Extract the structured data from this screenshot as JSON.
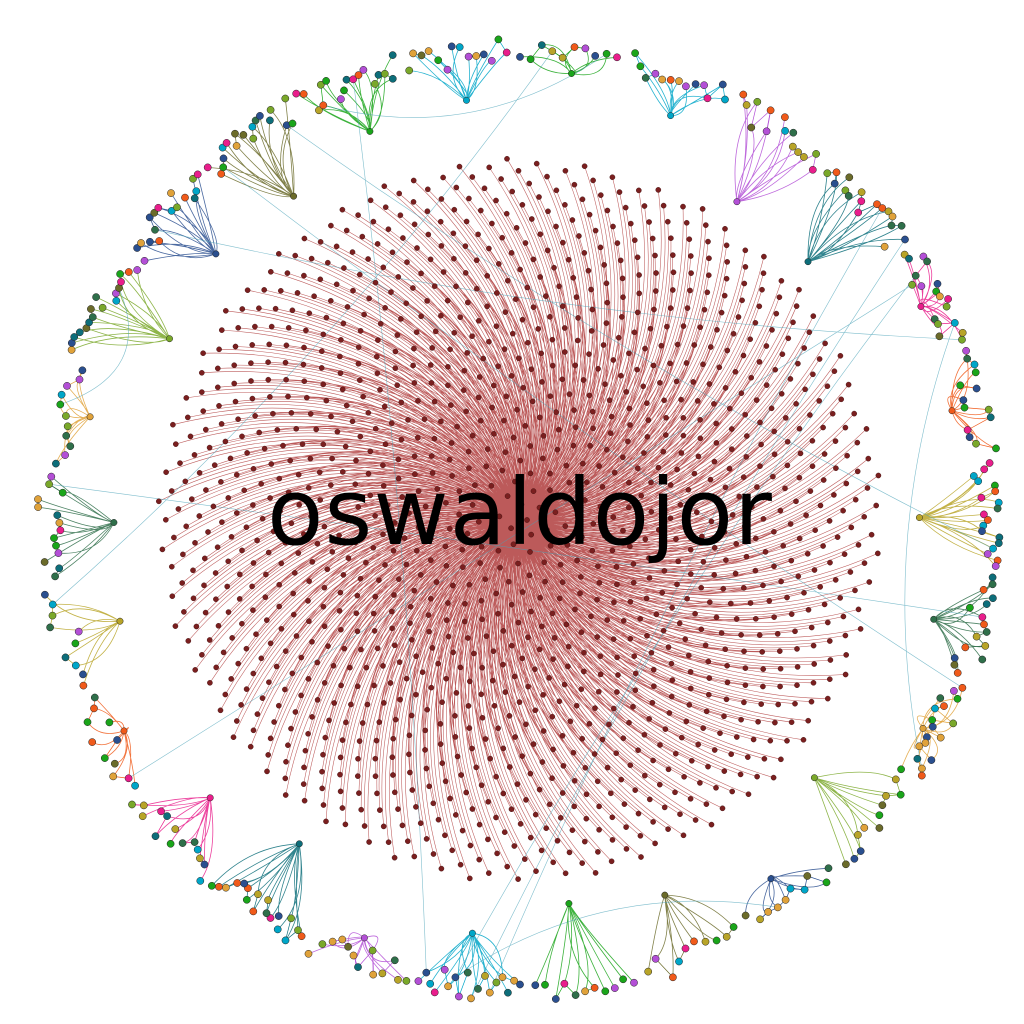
{
  "graph": {
    "hub_label": "oswaldojor",
    "hub_color": "#a52323",
    "hub_node_color": "#7a1f1f",
    "community_colors": [
      "#1aa51a",
      "#00a6c8",
      "#b34fd6",
      "#0d6e7a",
      "#e91e8c",
      "#f05a1a",
      "#b8a428",
      "#2f6f4a",
      "#e0a23a",
      "#7aa82a",
      "#2a4f8f",
      "#6b6b2a"
    ]
  }
}
